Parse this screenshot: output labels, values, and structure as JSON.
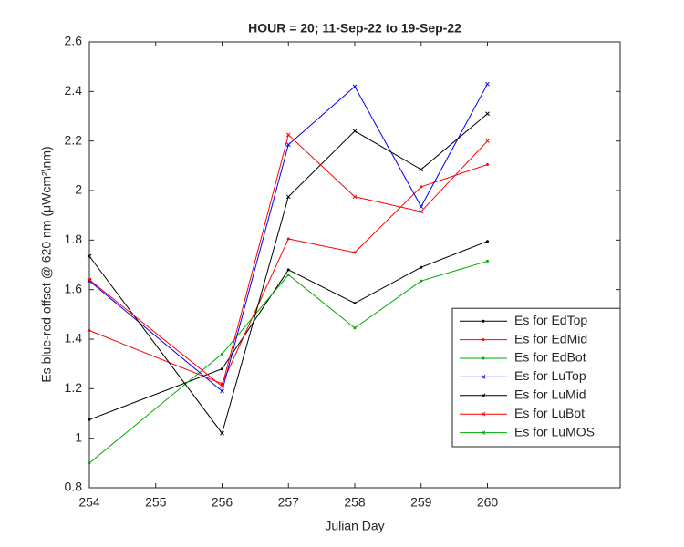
{
  "chart_data": {
    "type": "line",
    "title": "HOUR = 20; 11-Sep-22 to 19-Sep-22",
    "xlabel": "Julian Day",
    "ylabel": "Es blue-red offset @ 620 nm (μWcm²\\nm)",
    "x": [
      254,
      256,
      257,
      258,
      259,
      260
    ],
    "xlim": [
      254,
      262
    ],
    "xticks": [
      254,
      255,
      256,
      257,
      258,
      259,
      260
    ],
    "ylim": [
      0.8,
      2.6
    ],
    "yticks": [
      0.8,
      1,
      1.2,
      1.4,
      1.6,
      1.8,
      2,
      2.2,
      2.4,
      2.6
    ],
    "grid": false,
    "legend": "lower right",
    "series": [
      {
        "name": "Es for EdTop",
        "color": "#000000",
        "marker": ".",
        "values": [
          1.075,
          1.28,
          1.68,
          1.545,
          1.69,
          1.795
        ]
      },
      {
        "name": "Es for EdMid",
        "color": "#ff0000",
        "marker": ".",
        "values": [
          1.435,
          1.22,
          1.805,
          1.75,
          2.015,
          2.105
        ]
      },
      {
        "name": "Es for EdBot",
        "color": "#00aa00",
        "marker": ".",
        "values": [
          0.9,
          1.34,
          1.66,
          1.445,
          1.635,
          1.715
        ]
      },
      {
        "name": "Es for LuTop",
        "color": "#0000ff",
        "marker": "x",
        "values": [
          1.635,
          1.19,
          2.185,
          2.42,
          1.935,
          2.43
        ]
      },
      {
        "name": "Es for LuMid",
        "color": "#000000",
        "marker": "x",
        "values": [
          1.735,
          1.02,
          1.975,
          2.24,
          2.085,
          2.31
        ]
      },
      {
        "name": "Es for LuBot",
        "color": "#ff0000",
        "marker": "x",
        "values": [
          1.64,
          1.21,
          2.225,
          1.975,
          1.915,
          2.2
        ]
      },
      {
        "name": "Es for LuMOS",
        "color": "#00aa00",
        "marker": "x",
        "values": [
          null,
          null,
          null,
          null,
          null,
          null
        ]
      }
    ]
  }
}
